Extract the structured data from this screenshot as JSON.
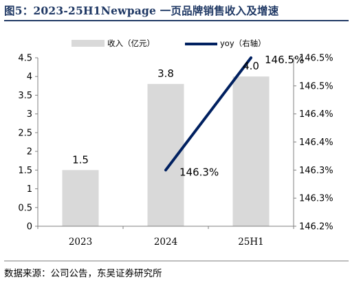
{
  "figure": {
    "title": "图5：2023-25H1Newpage 一页品牌销售收入及增速",
    "source": "数据来源：公司公告，东吴证券研究所"
  },
  "colors": {
    "bar": "#d9d9d9",
    "line": "#002060",
    "title": "#1f3864",
    "axis": "#7f7f7f",
    "text": "#000000"
  },
  "chart_data": {
    "type": "bar",
    "categories": [
      "2023",
      "2024",
      "25H1"
    ],
    "series": [
      {
        "name": "收入（亿元）",
        "type": "bar",
        "axis": "left",
        "values": [
          1.5,
          3.8,
          4.0
        ],
        "data_labels": [
          "1.5",
          "3.8",
          "4.0"
        ]
      },
      {
        "name": "yoy（右轴）",
        "type": "line",
        "axis": "right",
        "values": [
          null,
          146.3,
          146.5
        ],
        "data_labels": [
          "",
          "146.3%",
          "146.5%"
        ]
      }
    ],
    "y_left": {
      "min": 0,
      "max": 4.5,
      "ticks": [
        "0",
        "0.5",
        "1",
        "1.5",
        "2",
        "2.5",
        "3",
        "3.5",
        "4",
        "4.5"
      ]
    },
    "y_right": {
      "min": 146.2,
      "max": 146.5,
      "ticks": [
        "146.2%",
        "146.3%",
        "146.3%",
        "146.4%",
        "146.4%",
        "146.5%",
        "146.5%"
      ]
    },
    "legend_position": "top",
    "grid": false,
    "xlabel": "",
    "ylabel": ""
  }
}
